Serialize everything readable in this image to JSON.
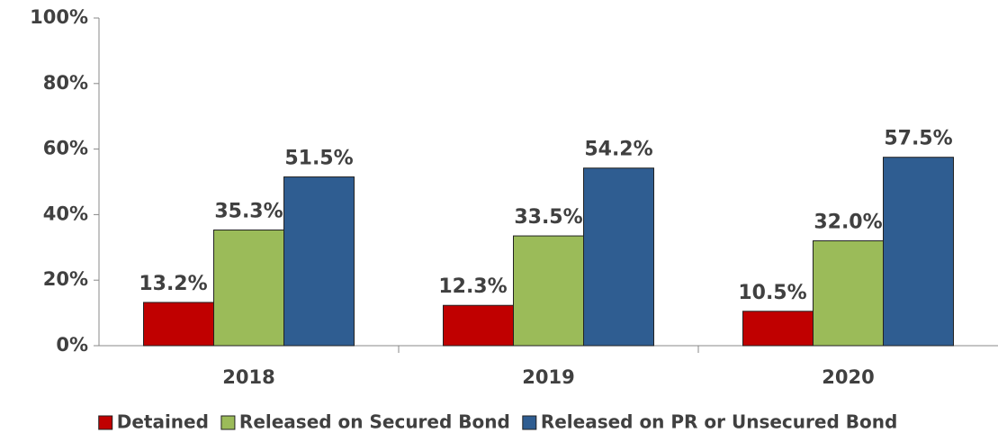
{
  "chart_data": {
    "type": "bar",
    "categories": [
      "2018",
      "2019",
      "2020"
    ],
    "series": [
      {
        "name": "Detained",
        "color": "#c00000",
        "values": [
          13.2,
          12.3,
          10.5
        ],
        "value_labels": [
          "13.2%",
          "12.3%",
          "10.5%"
        ]
      },
      {
        "name": "Released on Secured Bond",
        "color": "#9bbb59",
        "values": [
          35.3,
          33.5,
          32.0
        ],
        "value_labels": [
          "35.3%",
          "33.5%",
          "32.0%"
        ]
      },
      {
        "name": "Released on PR or Unsecured Bond",
        "color": "#2f5d91",
        "values": [
          51.5,
          54.2,
          57.5
        ],
        "value_labels": [
          "51.5%",
          "54.2%",
          "57.5%"
        ]
      }
    ],
    "ylim": [
      0,
      100
    ],
    "yticks": [
      {
        "value": 0,
        "label": "0%"
      },
      {
        "value": 20,
        "label": "20%"
      },
      {
        "value": 40,
        "label": "40%"
      },
      {
        "value": 60,
        "label": "60%"
      },
      {
        "value": 80,
        "label": "80%"
      },
      {
        "value": 100,
        "label": "100%"
      }
    ],
    "legend": "bottom"
  }
}
